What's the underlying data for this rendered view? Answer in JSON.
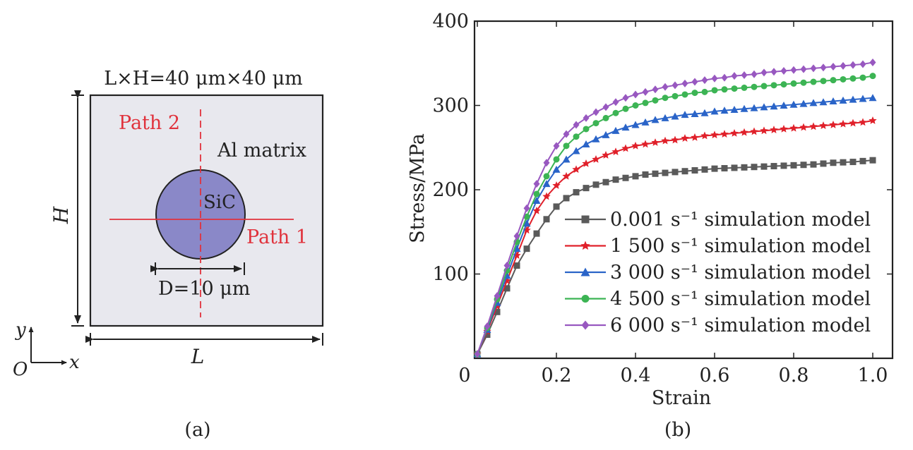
{
  "panel_a": {
    "dimension_label": "L×H=40 μm×40 μm",
    "matrix_label": "Al matrix",
    "particle_label": "SiC",
    "diameter_label": "D=10 μm",
    "height_label": "H",
    "length_label": "L",
    "path1_label": "Path 1",
    "path2_label": "Path 2",
    "axis_y": "y",
    "axis_x": "x",
    "origin": "O",
    "caption": "(a)",
    "colors": {
      "matrix": "#e8e8ee",
      "particle": "#8a88c8",
      "path": "#e0323c"
    }
  },
  "panel_b": {
    "caption": "(b)"
  },
  "chart_data": {
    "type": "line",
    "xlabel": "Strain",
    "ylabel": "Stress/MPa",
    "xlim": [
      0,
      1.0
    ],
    "ylim": [
      0,
      400
    ],
    "xticks": [
      "0",
      "0.2",
      "0.4",
      "0.6",
      "0.8",
      "1.0"
    ],
    "yticks": [
      "",
      "100",
      "200",
      "300",
      "400"
    ],
    "grid": false,
    "legend_position": "bottom-right",
    "x": [
      0,
      0.025,
      0.05,
      0.075,
      0.1,
      0.125,
      0.15,
      0.175,
      0.2,
      0.225,
      0.25,
      0.275,
      0.3,
      0.325,
      0.35,
      0.375,
      0.4,
      0.425,
      0.45,
      0.475,
      0.5,
      0.525,
      0.55,
      0.575,
      0.6,
      0.625,
      0.65,
      0.675,
      0.7,
      0.725,
      0.75,
      0.775,
      0.8,
      0.825,
      0.85,
      0.875,
      0.9,
      0.925,
      0.95,
      0.975,
      1.0
    ],
    "series": [
      {
        "name": "0.001 s⁻¹ simulation model",
        "color": "#5a5a5a",
        "marker": "square",
        "values": [
          5,
          28,
          55,
          83,
          110,
          130,
          148,
          165,
          180,
          190,
          197,
          202,
          206,
          209,
          212,
          214,
          216,
          218,
          219,
          220,
          221,
          222,
          223,
          224,
          225,
          225.5,
          226,
          226.5,
          227,
          227.5,
          228,
          228.5,
          229,
          229.5,
          230,
          231,
          232,
          232.5,
          233,
          234,
          235
        ]
      },
      {
        "name": "1 500 s⁻¹ simulation model",
        "color": "#e0202a",
        "marker": "star",
        "values": [
          5,
          32,
          62,
          92,
          122,
          152,
          175,
          192,
          205,
          216,
          224,
          231,
          236,
          241,
          245,
          249,
          252,
          254,
          256,
          258,
          259,
          261,
          262,
          264,
          265,
          266,
          267,
          268,
          269,
          270,
          271,
          272,
          273,
          274,
          275,
          276,
          277,
          278,
          279,
          280,
          282
        ]
      },
      {
        "name": "3 000 s⁻¹ simulation model",
        "color": "#2a64c8",
        "marker": "triangle",
        "values": [
          5,
          34,
          66,
          98,
          130,
          160,
          187,
          207,
          224,
          236,
          246,
          254,
          260,
          265,
          270,
          274,
          277,
          280,
          283,
          285,
          287,
          289,
          290,
          291,
          293,
          294,
          295,
          296,
          297,
          298,
          299,
          300,
          301,
          302,
          303,
          304,
          305,
          306,
          307,
          308,
          309
        ]
      },
      {
        "name": "4 500 s⁻¹ simulation model",
        "color": "#3cb454",
        "marker": "circle",
        "values": [
          5,
          36,
          70,
          104,
          138,
          168,
          195,
          216,
          236,
          252,
          263,
          272,
          279,
          285,
          291,
          296,
          300,
          303,
          306,
          309,
          311,
          313,
          315,
          316,
          318,
          319,
          320,
          321,
          322,
          323,
          324,
          325,
          326,
          327,
          328,
          329,
          330,
          331,
          332,
          333,
          335
        ]
      },
      {
        "name": "6 000 s⁻¹ simulation model",
        "color": "#9858c0",
        "marker": "diamond",
        "values": [
          5,
          38,
          74,
          110,
          145,
          178,
          207,
          232,
          252,
          266,
          277,
          285,
          292,
          298,
          304,
          309,
          313,
          316,
          319,
          322,
          324,
          326,
          328,
          330,
          332,
          333,
          335,
          336,
          337,
          339,
          340,
          341,
          342,
          343,
          344,
          345,
          346,
          347,
          348,
          349,
          351
        ]
      }
    ]
  }
}
